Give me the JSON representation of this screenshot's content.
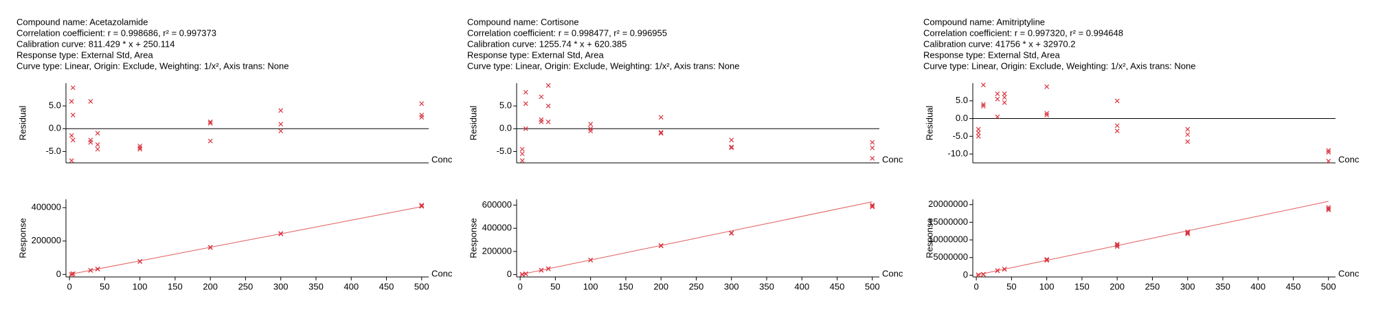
{
  "panels": [
    {
      "header": [
        "Compound name: Acetazolamide",
        "Correlation coefficient: r = 0.998686, r² = 0.997373",
        "Calibration curve: 811.429 * x + 250.114",
        "Response type: External Std, Area",
        "Curve type: Linear, Origin: Exclude, Weighting: 1/x², Axis trans: None"
      ]
    },
    {
      "header": [
        "Compound name: Cortisone",
        "Correlation coefficient: r = 0.998477, r² = 0.996955",
        "Calibration curve: 1255.74 * x + 620.385",
        "Response type: External Std, Area",
        "Curve type: Linear, Origin: Exclude, Weighting: 1/x², Axis trans: None"
      ]
    },
    {
      "header": [
        "Compound name: Amitriptyline",
        "Correlation coefficient: r = 0.997320, r² = 0.994648",
        "Calibration curve: 41756 * x + 32970.2",
        "Response type: External Std, Area",
        "Curve type: Linear, Origin: Exclude, Weighting: 1/x², Axis trans: None"
      ]
    }
  ],
  "chart_data": [
    {
      "type": "scatter",
      "ylabel": "Residual",
      "xlabel": "Conc",
      "color": "#d9343f",
      "xlim": [
        -5,
        510
      ],
      "ylim": [
        -7.5,
        10
      ],
      "yticks": [
        {
          "value": 5,
          "label": "5.0"
        },
        {
          "value": 0,
          "label": "0.0"
        },
        {
          "value": -5,
          "label": "-5.0"
        }
      ],
      "x": [
        3,
        3,
        3,
        5,
        5,
        5,
        30,
        30,
        30,
        40,
        40,
        40,
        100,
        100,
        100,
        200,
        200,
        200,
        300,
        300,
        300,
        500,
        500,
        500
      ],
      "values": [
        6,
        -1.5,
        -7,
        9,
        3,
        -2.5,
        6,
        -2.5,
        -3,
        -1,
        -3.5,
        -4.5,
        -3.8,
        -4.2,
        -4.5,
        1.5,
        1.2,
        -2.7,
        4,
        1,
        -0.5,
        5.5,
        3,
        2.5
      ]
    },
    {
      "type": "scatter",
      "ylabel": "Response",
      "xlabel": "Conc",
      "color": "#d9343f",
      "line_color": "#e05a5a",
      "xlim": [
        -5,
        510
      ],
      "ylim": [
        -15000,
        450000
      ],
      "yticks": [
        0,
        200000,
        400000
      ],
      "xticks": [
        0,
        50,
        100,
        150,
        200,
        250,
        300,
        350,
        400,
        450,
        500
      ],
      "x": [
        3,
        3,
        3,
        5,
        5,
        5,
        30,
        30,
        30,
        40,
        40,
        40,
        100,
        100,
        100,
        200,
        200,
        200,
        300,
        300,
        300,
        500,
        500,
        500
      ],
      "values": [
        1000,
        1000,
        1000,
        4300,
        4300,
        4300,
        24600,
        24600,
        24600,
        32500,
        32500,
        32500,
        78000,
        78000,
        78000,
        162500,
        161000,
        163000,
        245000,
        243000,
        244500,
        415000,
        410000,
        408000
      ],
      "fit_line": {
        "x": [
          0,
          500
        ],
        "values": [
          250.114,
          405964.6
        ]
      }
    },
    {
      "type": "scatter",
      "ylabel": "Residual",
      "xlabel": "Conc",
      "color": "#d9343f",
      "xlim": [
        -5,
        510
      ],
      "ylim": [
        -7.5,
        10
      ],
      "yticks": [
        {
          "value": 5,
          "label": "5.0"
        },
        {
          "value": 0,
          "label": "0.0"
        },
        {
          "value": -5,
          "label": "-5.0"
        }
      ],
      "x": [
        3,
        3,
        3,
        8,
        8,
        8,
        30,
        30,
        30,
        40,
        40,
        40,
        100,
        100,
        100,
        200,
        200,
        200,
        300,
        300,
        300,
        500,
        500,
        500
      ],
      "values": [
        -4.5,
        -5.5,
        -7,
        8,
        5.5,
        0,
        7,
        2,
        1.5,
        9.5,
        5,
        1.5,
        1,
        0,
        -0.5,
        2.5,
        -0.8,
        -1,
        -2.5,
        -4,
        -4.2,
        -3,
        -4.2,
        -6.5
      ]
    },
    {
      "type": "scatter",
      "ylabel": "Response",
      "xlabel": "Conc",
      "color": "#d9343f",
      "line_color": "#e05a5a",
      "xlim": [
        -5,
        510
      ],
      "ylim": [
        -20000,
        650000
      ],
      "yticks": [
        0,
        200000,
        400000,
        600000
      ],
      "xticks": [
        0,
        50,
        100,
        150,
        200,
        250,
        300,
        350,
        400,
        450,
        500
      ],
      "x": [
        3,
        3,
        3,
        8,
        8,
        8,
        30,
        30,
        30,
        40,
        40,
        40,
        100,
        100,
        100,
        200,
        200,
        200,
        300,
        300,
        300,
        500,
        500,
        500
      ],
      "values": [
        1900,
        1900,
        1900,
        6900,
        6900,
        6900,
        38000,
        38000,
        38000,
        50800,
        50800,
        50800,
        126000,
        126000,
        126000,
        252000,
        250000,
        248000,
        360000,
        358000,
        356000,
        600000,
        590000,
        585000
      ],
      "fit_line": {
        "x": [
          0,
          500
        ],
        "values": [
          620.385,
          628490.4
        ]
      }
    },
    {
      "type": "scatter",
      "ylabel": "Residual",
      "xlabel": "Conc",
      "color": "#d9343f",
      "xlim": [
        -5,
        510
      ],
      "ylim": [
        -12.5,
        10
      ],
      "yticks": [
        {
          "value": 5,
          "label": "5.0"
        },
        {
          "value": 0,
          "label": "0.0"
        },
        {
          "value": -5,
          "label": "-5.0"
        },
        {
          "value": -10,
          "label": "-10.0"
        }
      ],
      "x": [
        3,
        3,
        3,
        10,
        10,
        10,
        30,
        30,
        30,
        40,
        40,
        40,
        100,
        100,
        100,
        200,
        200,
        200,
        300,
        300,
        300,
        500,
        500,
        500
      ],
      "values": [
        -3,
        -4,
        -5,
        9.5,
        4,
        3.5,
        7,
        5.5,
        0.5,
        7,
        6,
        4.5,
        9,
        1.5,
        1,
        5,
        -2,
        -3.5,
        -3,
        -4.5,
        -6.5,
        -9,
        -9.5,
        -12
      ]
    },
    {
      "type": "scatter",
      "ylabel": "Response",
      "xlabel": "Conc",
      "color": "#d9343f",
      "line_color": "#e05a5a",
      "xlim": [
        -5,
        510
      ],
      "ylim": [
        -500000,
        21500000
      ],
      "yticks": [
        0,
        5000000,
        10000000,
        15000000,
        20000000
      ],
      "xticks": [
        0,
        50,
        100,
        150,
        200,
        250,
        300,
        350,
        400,
        450,
        500
      ],
      "x": [
        3,
        3,
        3,
        10,
        10,
        10,
        30,
        30,
        30,
        40,
        40,
        40,
        100,
        100,
        100,
        200,
        200,
        200,
        300,
        300,
        300,
        500,
        500,
        500
      ],
      "values": [
        75000,
        75000,
        75000,
        240000,
        240000,
        240000,
        1280000,
        1280000,
        1280000,
        1700000,
        1700000,
        1700000,
        4200000,
        4300000,
        4500000,
        8100000,
        8500000,
        8800000,
        11700000,
        12000000,
        12300000,
        18500000,
        18800000,
        19200000
      ],
      "fit_line": {
        "x": [
          0,
          500
        ],
        "values": [
          32970.2,
          20910970
        ]
      }
    }
  ]
}
